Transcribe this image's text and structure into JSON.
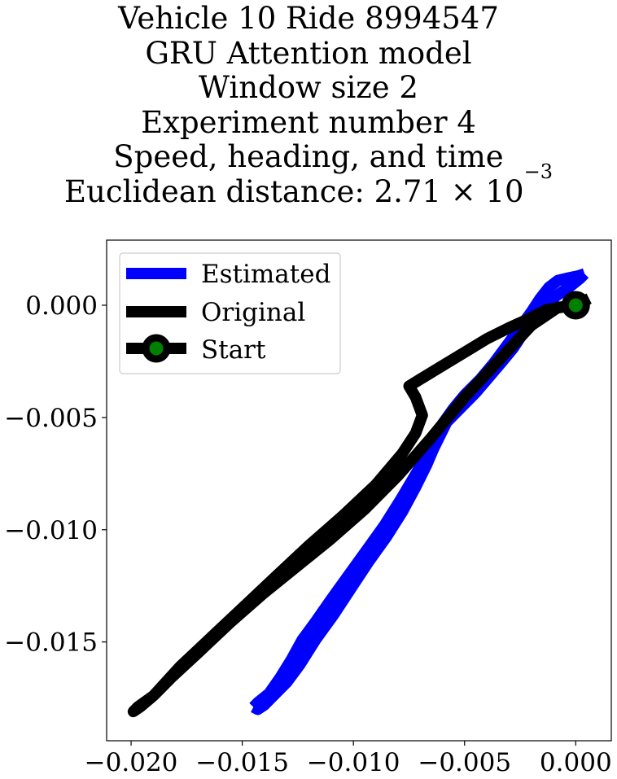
{
  "chart_data": {
    "type": "line",
    "title_lines": [
      "Vehicle 10 Ride 8994547",
      "GRU Attention model",
      "Window size 2",
      "Experiment number 4",
      "Speed, heading, and time"
    ],
    "title_metric_prefix": "Euclidean distance: 2.71 × 10",
    "title_metric_exponent": "−3",
    "xlabel": "",
    "ylabel": "",
    "xlim": [
      -0.0211,
      0.0016
    ],
    "ylim": [
      -0.0194,
      0.0029
    ],
    "xticks": [
      -0.02,
      -0.015,
      -0.01,
      -0.005,
      0.0
    ],
    "xtick_labels": [
      "−0.020",
      "−0.015",
      "−0.010",
      "−0.005",
      "0.000"
    ],
    "yticks": [
      0.0,
      -0.005,
      -0.01,
      -0.015
    ],
    "ytick_labels": [
      "0.000",
      "−0.005",
      "−0.010",
      "−0.015"
    ],
    "grid": false,
    "legend_position": "upper-left",
    "legend": [
      "Estimated",
      "Original",
      "Start"
    ],
    "colors": {
      "estimated": "#0000ff",
      "original": "#000000",
      "start_marker_fill": "#008000",
      "start_marker_edge": "#000000"
    },
    "series": [
      {
        "name": "Estimated",
        "x": [
          -0.0145,
          -0.0143,
          -0.0138,
          -0.0133,
          -0.0128,
          -0.0123,
          -0.0117,
          -0.011,
          -0.0102,
          -0.0094,
          -0.0086,
          -0.0079,
          -0.0073,
          -0.0067,
          -0.0063,
          -0.006,
          -0.0055,
          -0.005,
          -0.0043,
          -0.0037,
          -0.0031,
          -0.0025,
          -0.002,
          -0.0016,
          -0.0012,
          -0.0008,
          -0.0004,
          0.0001,
          0.0004
        ],
        "y": [
          -0.0179,
          -0.0177,
          -0.0173,
          -0.0166,
          -0.0158,
          -0.0149,
          -0.0141,
          -0.0131,
          -0.012,
          -0.0109,
          -0.0098,
          -0.0087,
          -0.0077,
          -0.0067,
          -0.0059,
          -0.0053,
          -0.0046,
          -0.004,
          -0.0033,
          -0.0026,
          -0.0018,
          -0.001,
          -0.0003,
          0.0003,
          0.0008,
          0.0011,
          0.0012,
          0.0013,
          0.0014
        ]
      },
      {
        "name": "Estimated",
        "x": [
          0.0004,
          0.0002,
          -0.0003,
          -0.0009,
          -0.0014,
          -0.0019,
          -0.0024,
          -0.0028,
          -0.0033,
          -0.0039,
          -0.0045,
          -0.0052,
          -0.0058,
          -0.0061,
          -0.0064,
          -0.0067,
          -0.0072,
          -0.0078,
          -0.0085,
          -0.0093,
          -0.0101,
          -0.0109,
          -0.0117,
          -0.0124,
          -0.013,
          -0.0136,
          -0.014,
          -0.0143,
          -0.0145
        ],
        "y": [
          0.0014,
          0.0012,
          0.0008,
          0.0004,
          -0.0002,
          -0.0007,
          -0.0013,
          -0.0019,
          -0.0025,
          -0.0032,
          -0.0039,
          -0.0046,
          -0.0052,
          -0.0058,
          -0.0064,
          -0.0071,
          -0.0081,
          -0.0092,
          -0.0103,
          -0.0114,
          -0.0126,
          -0.0138,
          -0.0149,
          -0.016,
          -0.0168,
          -0.0174,
          -0.0178,
          -0.018,
          -0.0179
        ]
      },
      {
        "name": "Original",
        "x": [
          0.0006,
          0.0,
          -0.0008,
          -0.002,
          -0.0035,
          -0.005,
          -0.0065,
          -0.008,
          -0.0095,
          -0.011,
          -0.0125,
          -0.014,
          -0.0155,
          -0.017,
          -0.0182,
          -0.019,
          -0.0196,
          -0.0199,
          -0.0197,
          -0.019,
          -0.0178,
          -0.0163,
          -0.0148,
          -0.0134,
          -0.012,
          -0.0105,
          -0.009,
          -0.0078,
          -0.0072,
          -0.0069,
          -0.0072,
          -0.0075,
          -0.007,
          -0.006,
          -0.005,
          -0.004,
          -0.003,
          -0.0021,
          -0.0013,
          -0.0007,
          -0.0002,
          0.0
        ],
        "y": [
          0.0003,
          0.0,
          -0.0001,
          -0.0009,
          -0.0025,
          -0.0041,
          -0.0059,
          -0.0076,
          -0.0091,
          -0.0104,
          -0.0116,
          -0.0128,
          -0.0141,
          -0.0155,
          -0.0166,
          -0.0174,
          -0.0179,
          -0.0181,
          -0.0179,
          -0.0174,
          -0.0161,
          -0.0147,
          -0.0133,
          -0.012,
          -0.0107,
          -0.0094,
          -0.008,
          -0.0066,
          -0.0057,
          -0.0049,
          -0.0041,
          -0.0036,
          -0.0033,
          -0.0027,
          -0.0021,
          -0.0015,
          -0.001,
          -0.0006,
          -0.0002,
          -0.0001,
          0.0,
          0.0
        ]
      }
    ],
    "start_point": {
      "name": "Start",
      "x": 0.0,
      "y": 0.0
    }
  }
}
